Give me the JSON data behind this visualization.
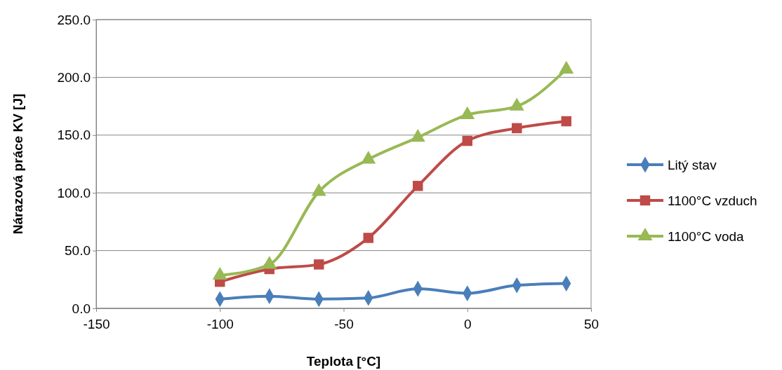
{
  "chart_data": {
    "type": "line",
    "xlabel": "Teplota [°C]",
    "ylabel": "Nárazová práce KV [J]",
    "x": [
      -100,
      -80,
      -60,
      -40,
      -20,
      0,
      20,
      40
    ],
    "xlim": [
      -150,
      50
    ],
    "xticks": [
      -150,
      -100,
      -50,
      0,
      50
    ],
    "ylim": [
      0,
      250
    ],
    "yticks": [
      {
        "value": 0,
        "label": "0.0"
      },
      {
        "value": 50,
        "label": "50.0"
      },
      {
        "value": 100,
        "label": "100.0"
      },
      {
        "value": 150,
        "label": "150.0"
      },
      {
        "value": 200,
        "label": "200.0"
      },
      {
        "value": 250,
        "label": "250.0"
      }
    ],
    "grid": "y",
    "legend": "right",
    "series": [
      {
        "name": "Litý stav",
        "color": "#4a7ebb",
        "marker": "diamond",
        "values": [
          8,
          10.5,
          8,
          9,
          17,
          13,
          20,
          21.5
        ]
      },
      {
        "name": "1100°C vzduch",
        "color": "#be4b48",
        "marker": "square",
        "values": [
          23,
          34,
          38,
          61,
          106,
          145,
          156,
          162
        ]
      },
      {
        "name": "1100°C voda",
        "color": "#98b954",
        "marker": "triangle",
        "values": [
          28.5,
          38,
          101,
          129,
          148,
          167.5,
          175,
          207
        ]
      }
    ]
  }
}
